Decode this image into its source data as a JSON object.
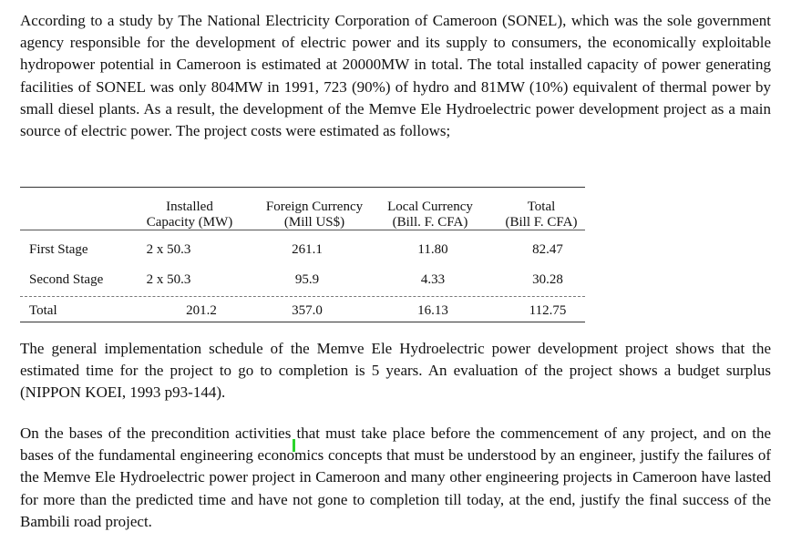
{
  "paragraphs": {
    "intro": "According to a study by The National Electricity Corporation of Cameroon (SONEL), which was the sole government agency responsible for the development of electric power and its supply to consumers, the economically exploitable hydropower potential in Cameroon is estimated at 20000MW in total. The total installed capacity of power generating facilities of SONEL was only 804MW in 1991, 723 (90%) of hydro and 81MW (10%) equivalent of thermal power by small diesel plants.  As a result, the development of the Memve Ele Hydroelectric power development project as a main source of electric power. The project costs were estimated as follows;",
    "schedule": "The general implementation schedule of the Memve Ele Hydroelectric power development project shows that the estimated time for the project to go to completion is 5 years. An evaluation of the project shows a budget surplus (NIPPON KOEI, 1993 p93-144).",
    "question": "On the bases of the precondition activities that must take place before the commencement of any project, and on the bases of the fundamental engineering economics concepts that must be understood by an engineer, justify the failures of the Memve Ele Hydroelectric power project in Cameroon and many other engineering projects in Cameroon have lasted for more than the predicted time and have not gone to completion till today, at the end, justify the final success of the Bambili road project."
  },
  "cost_table": {
    "headers": {
      "capacity": [
        "Installed",
        "Capacity (MW)"
      ],
      "foreign": [
        "Foreign Currency",
        "(Mill US$)"
      ],
      "local": [
        "Local Currency",
        "(Bill. F. CFA)"
      ],
      "total": [
        "Total",
        "(Bill F. CFA)"
      ]
    },
    "rows": [
      {
        "label": "First Stage",
        "capacity": "2 x 50.3",
        "foreign": "261.1",
        "local": "11.80",
        "total": "82.47"
      },
      {
        "label": "Second Stage",
        "capacity": "2 x 50.3",
        "foreign": "95.9",
        "local": "4.33",
        "total": "30.28"
      },
      {
        "label": "Total",
        "capacity": "201.2",
        "foreign": "357.0",
        "local": "16.13",
        "total": "112.75"
      }
    ]
  },
  "colors": {
    "text": "#111111",
    "background": "#ffffff",
    "cursor": "#2bd42b"
  }
}
